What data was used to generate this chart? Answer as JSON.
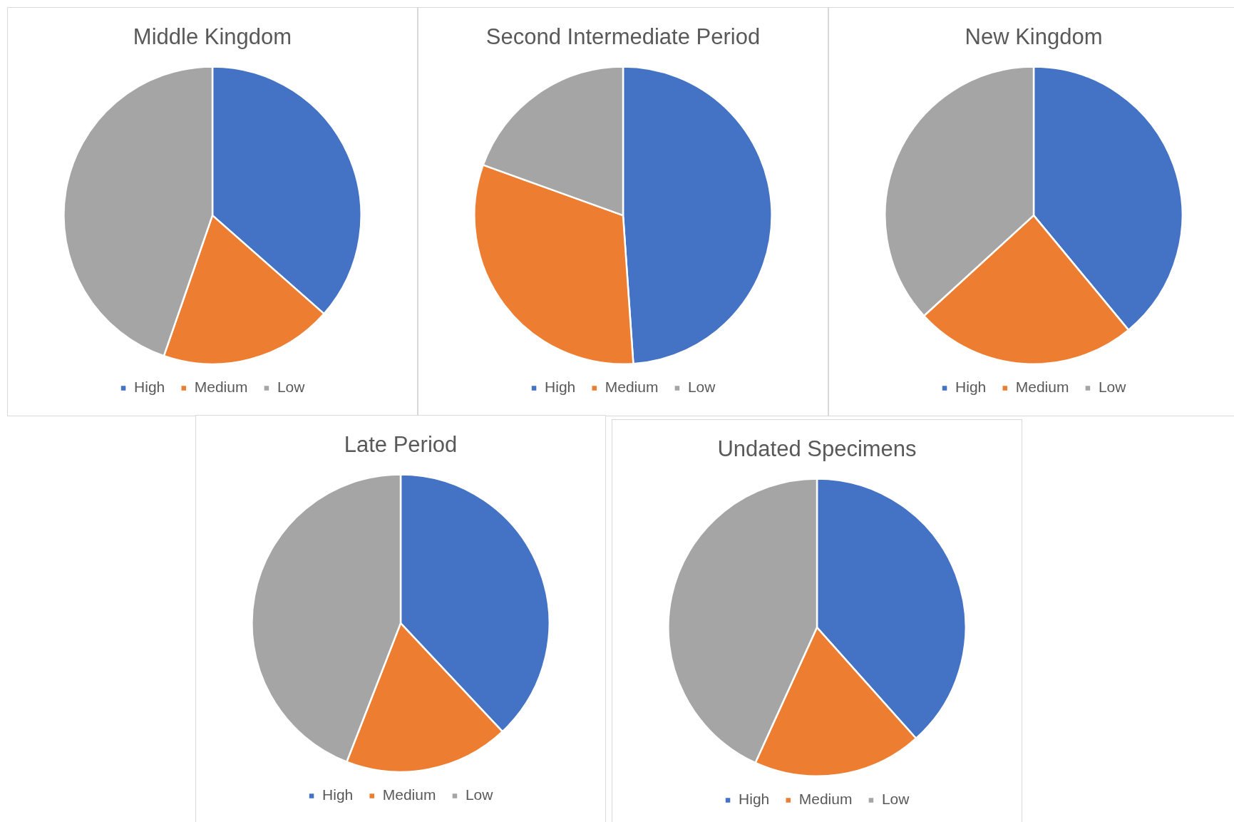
{
  "chart_data": [
    {
      "type": "pie",
      "title": "Middle Kingdom",
      "categories": [
        "High",
        "Medium",
        "Low"
      ],
      "values": [
        36.5,
        18.8,
        44.7
      ],
      "colors": [
        "#4472c4",
        "#ed7d31",
        "#a5a5a5"
      ],
      "legend": "bottom"
    },
    {
      "type": "pie",
      "title": "Second Intermediate Period",
      "categories": [
        "High",
        "Medium",
        "Low"
      ],
      "values": [
        48.9,
        31.6,
        19.5
      ],
      "colors": [
        "#4472c4",
        "#ed7d31",
        "#a5a5a5"
      ],
      "legend": "bottom"
    },
    {
      "type": "pie",
      "title": "New Kingdom",
      "categories": [
        "High",
        "Medium",
        "Low"
      ],
      "values": [
        39,
        24.2,
        36.8
      ],
      "colors": [
        "#4472c4",
        "#ed7d31",
        "#a5a5a5"
      ],
      "legend": "bottom"
    },
    {
      "type": "pie",
      "title": "Late Period",
      "categories": [
        "High",
        "Medium",
        "Low"
      ],
      "values": [
        38,
        17.9,
        44.1
      ],
      "colors": [
        "#4472c4",
        "#ed7d31",
        "#a5a5a5"
      ],
      "legend": "bottom"
    },
    {
      "type": "pie",
      "title": "Undated Specimens",
      "categories": [
        "High",
        "Medium",
        "Low"
      ],
      "values": [
        38.4,
        18.4,
        43.2
      ],
      "colors": [
        "#4472c4",
        "#ed7d31",
        "#a5a5a5"
      ],
      "legend": "bottom"
    }
  ]
}
